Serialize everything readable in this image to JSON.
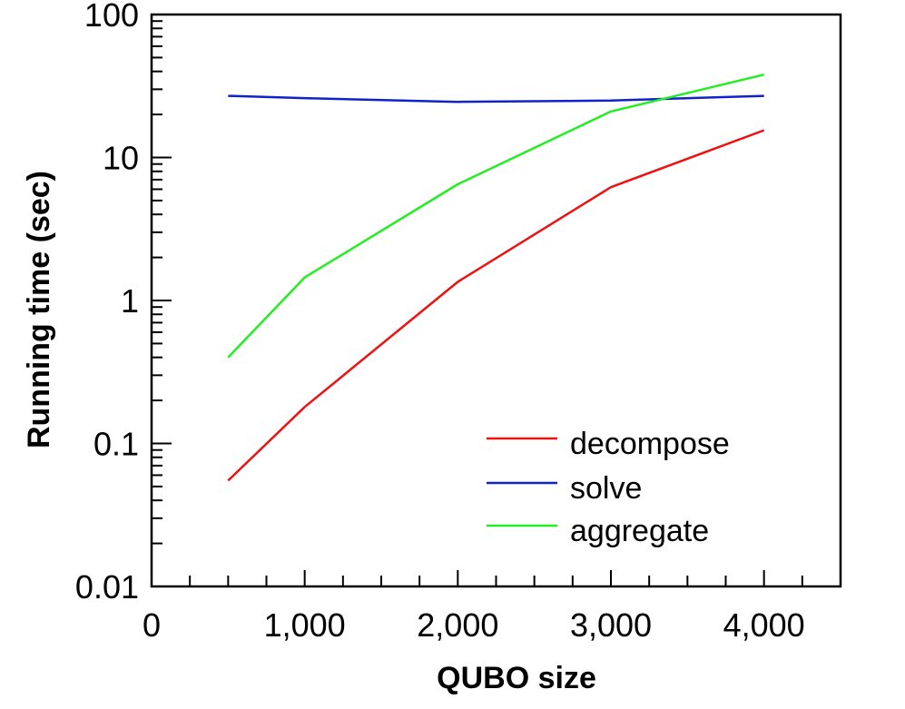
{
  "chart_data": {
    "type": "line",
    "title": "",
    "xlabel": "QUBO size",
    "ylabel": "Running time (sec)",
    "xlim": [
      0,
      4500
    ],
    "ylim": [
      0.01,
      100
    ],
    "yscale": "log",
    "x_ticks": [
      0,
      1000,
      2000,
      3000,
      4000
    ],
    "x_tick_labels": [
      "0",
      "1,000",
      "2,000",
      "3,000",
      "4,000"
    ],
    "y_ticks": [
      0.01,
      0.1,
      1,
      10,
      100
    ],
    "y_tick_labels": [
      "0.01",
      "0.1",
      "1",
      "10",
      "100"
    ],
    "x": [
      500,
      1000,
      2000,
      3000,
      4000
    ],
    "series": [
      {
        "name": "decompose",
        "color": "#ee1111",
        "values": [
          0.055,
          0.18,
          1.35,
          6.2,
          15.5
        ]
      },
      {
        "name": "solve",
        "color": "#1122cc",
        "values": [
          27,
          26,
          24.5,
          25,
          27
        ]
      },
      {
        "name": "aggregate",
        "color": "#22ee22",
        "values": [
          0.4,
          1.45,
          6.5,
          21,
          38
        ]
      }
    ],
    "legend_position": "bottom-right",
    "grid": false
  }
}
